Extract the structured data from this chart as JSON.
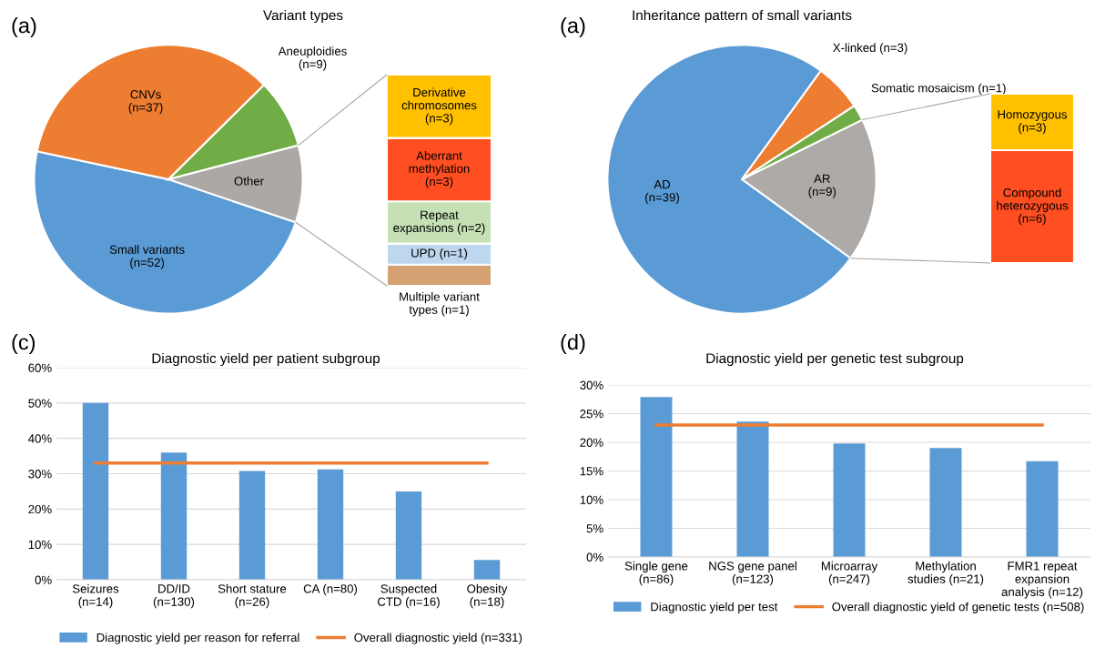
{
  "chart_data": [
    {
      "type": "pie",
      "title": "Variant types",
      "annotations": [
        "(a)"
      ],
      "categories": [
        "Small variants\n(n=52)",
        "Other",
        "Aneuploidies\n(n=9)",
        "CNVs\n(n=37)"
      ],
      "values": [
        52,
        10,
        9,
        37
      ],
      "colors": [
        "#5b9bd5",
        "#aba8a6",
        "#70ad47",
        "#ed7d31"
      ]
    },
    {
      "type": "bar",
      "stacked": true,
      "categories": [
        null
      ],
      "tick_labels": false,
      "series": [
        {
          "color": "#d5a172",
          "values": [
            1
          ],
          "value_labels": [
            "Multiple variant\ntypes (n=1)"
          ]
        },
        {
          "color": "#bdd7ee",
          "values": [
            1
          ],
          "value_labels": [
            "UPD (n=1)"
          ]
        },
        {
          "color": "#c5e0b4",
          "values": [
            2
          ],
          "value_labels": [
            "Repeat\nexpansions (n=2)"
          ]
        },
        {
          "color": "#ff4f22",
          "values": [
            3
          ],
          "value_labels": [
            "Aberrant\nmethylation\n(n=3)"
          ]
        },
        {
          "color": "#ffc000",
          "values": [
            3
          ],
          "value_labels": [
            "Derivative\nchromosomes\n(n=3)"
          ]
        }
      ]
    },
    {
      "type": "pie",
      "title": "Inheritance pattern of small variants",
      "annotations": [
        "(a)"
      ],
      "categories": [
        "AR\n(n=9)",
        "Somatic mosaicism (n=1)",
        "X-linked (n=3)",
        "AD\n(n=39)"
      ],
      "values": [
        9,
        1,
        3,
        39
      ],
      "colors": [
        "#aeaaa8",
        "#70ad47",
        "#ed7d31",
        "#5b9bd5"
      ]
    },
    {
      "type": "bar",
      "stacked": true,
      "categories": [
        null
      ],
      "tick_labels": false,
      "series": [
        {
          "color": "#ff4f22",
          "values": [
            6
          ],
          "value_labels": [
            "Compound\nheterozygous\n(n=6)"
          ]
        },
        {
          "color": "#ffc000",
          "values": [
            3
          ],
          "value_labels": [
            "Homozygous\n(n=3)"
          ]
        }
      ]
    },
    {
      "type": "bar",
      "title": "Diagnostic yield per patient subgroup",
      "annotations": [
        "(c)"
      ],
      "categories": [
        "Seizures\n(n=14)",
        "DD/ID\n(n=130)",
        "Short stature\n(n=26)",
        "CA (n=80)",
        "Suspected\nCTD (n=16)",
        "Obesity\n(n=18)"
      ],
      "series": [
        {
          "name": "Diagnostic yield per reason for referral",
          "color": "#5b9bd5",
          "values": [
            50,
            36,
            30.8,
            31.2,
            25,
            5.6
          ]
        },
        {
          "type": "line",
          "name": "Overall diagnostic yield (n=331)",
          "color": "#ed7d31",
          "values": [
            33,
            33,
            33,
            33,
            33,
            33
          ]
        }
      ],
      "ylim": [
        0,
        60
      ],
      "yticks": [
        {
          "value": 0,
          "label": "0%"
        },
        {
          "value": 10,
          "label": "10%"
        },
        {
          "value": 20,
          "label": "20%"
        },
        {
          "value": 30,
          "label": "30%"
        },
        {
          "value": 40,
          "label": "40%"
        },
        {
          "value": 50,
          "label": "50%"
        },
        {
          "value": 60,
          "label": "60%"
        }
      ],
      "grid": "y",
      "legend": "bottom"
    },
    {
      "type": "bar",
      "title": "Diagnostic yield per genetic test subgroup",
      "annotations": [
        "(d)"
      ],
      "categories": [
        "Single gene\n(n=86)",
        "NGS gene panel\n(n=123)",
        "Microarray\n(n=247)",
        "Methylation\nstudies (n=21)",
        "FMR1 repeat\nexpansion\nanalysis (n=12)"
      ],
      "series": [
        {
          "name": "Diagnostic yield per test",
          "color": "#5b9bd5",
          "values": [
            27.9,
            23.6,
            19.8,
            19,
            16.7
          ]
        },
        {
          "type": "line",
          "name": "Overall diagnostic yield of genetic tests (n=508)",
          "color": "#ed7d31",
          "values": [
            23,
            23,
            23,
            23,
            23
          ]
        }
      ],
      "ylim": [
        0,
        30
      ],
      "yticks": [
        {
          "value": 0,
          "label": "0%"
        },
        {
          "value": 5,
          "label": "5%"
        },
        {
          "value": 10,
          "label": "10%"
        },
        {
          "value": 15,
          "label": "15%"
        },
        {
          "value": 20,
          "label": "20%"
        },
        {
          "value": 25,
          "label": "25%"
        },
        {
          "value": 30,
          "label": "30%"
        }
      ],
      "grid": "y",
      "legend": "bottom"
    }
  ]
}
